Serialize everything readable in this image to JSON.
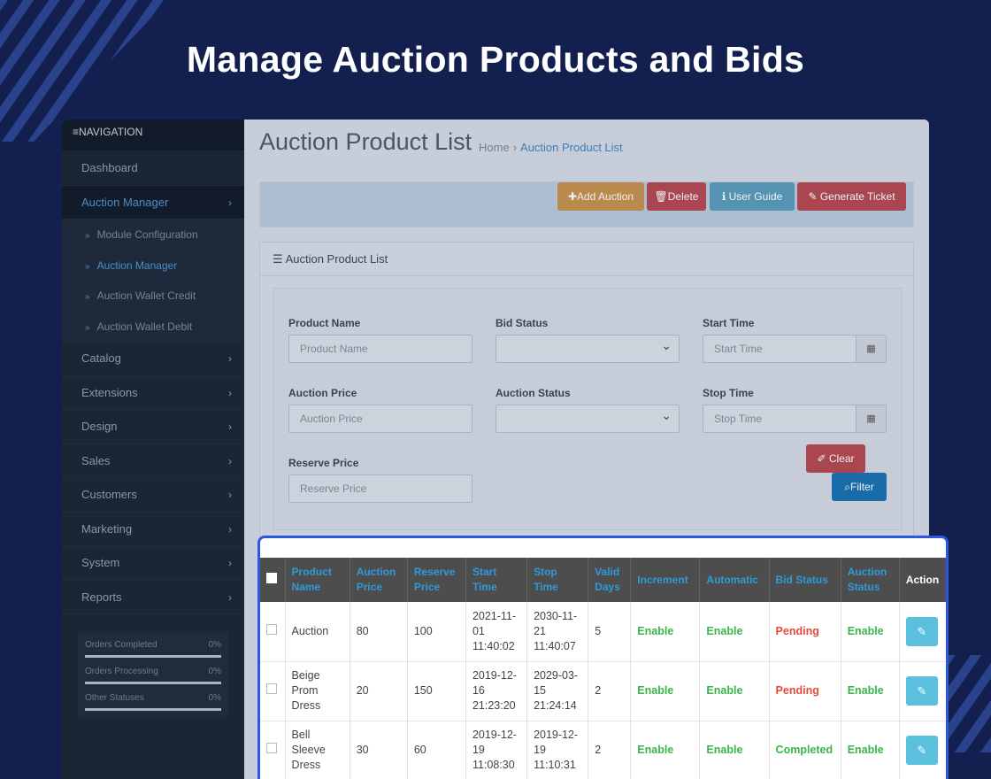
{
  "hero": {
    "title": "Manage Auction Products and Bids"
  },
  "sidebar": {
    "header": "NAVIGATION",
    "items": [
      {
        "label": "Dashboard"
      },
      {
        "label": "Auction Manager",
        "active": true
      },
      {
        "label": "Catalog"
      },
      {
        "label": "Extensions"
      },
      {
        "label": "Design"
      },
      {
        "label": "Sales"
      },
      {
        "label": "Customers"
      },
      {
        "label": "Marketing"
      },
      {
        "label": "System"
      },
      {
        "label": "Reports"
      }
    ],
    "sub_items": [
      {
        "label": "Module Configuration"
      },
      {
        "label": "Auction Manager",
        "active": true
      },
      {
        "label": "Auction Wallet Credit"
      },
      {
        "label": "Auction Wallet Debit"
      }
    ],
    "stats": [
      {
        "label": "Orders Completed",
        "value": "0%"
      },
      {
        "label": "Orders Processing",
        "value": "0%"
      },
      {
        "label": "Other Statuses",
        "value": "0%"
      }
    ]
  },
  "page": {
    "title": "Auction Product List",
    "breadcrumb": {
      "home": "Home",
      "sep": "›",
      "current": "Auction Product List"
    }
  },
  "toolbar": {
    "add": "Add Auction",
    "delete": "Delete",
    "guide": "User Guide",
    "ticket": "Generate Ticket"
  },
  "panel": {
    "title": "Auction Product List",
    "filters": {
      "product_name": {
        "label": "Product Name",
        "placeholder": "Product Name"
      },
      "bid_status": {
        "label": "Bid Status",
        "value": ""
      },
      "start_time": {
        "label": "Start Time",
        "placeholder": "Start Time"
      },
      "auction_price": {
        "label": "Auction Price",
        "placeholder": "Auction Price"
      },
      "auction_status": {
        "label": "Auction Status",
        "value": ""
      },
      "stop_time": {
        "label": "Stop Time",
        "placeholder": "Stop Time"
      },
      "reserve_price": {
        "label": "Reserve Price",
        "placeholder": "Reserve Price"
      }
    },
    "clear": "Clear",
    "filter": "Filter"
  },
  "table": {
    "columns": [
      "Product Name",
      "Auction Price",
      "Reserve Price",
      "Start Time",
      "Stop Time",
      "Valid Days",
      "Increment",
      "Automatic",
      "Bid Status",
      "Auction Status",
      "Action"
    ],
    "rows": [
      {
        "name": "Auction",
        "auction_price": "80",
        "reserve_price": "100",
        "start": "2021-11-01 11:40:02",
        "stop": "2030-11-21 11:40:07",
        "days": "5",
        "increment": "Enable",
        "automatic": "Enable",
        "bid_status": "Pending",
        "auction_status": "Enable"
      },
      {
        "name": "Beige Prom Dress",
        "auction_price": "20",
        "reserve_price": "150",
        "start": "2019-12-16 21:23:20",
        "stop": "2029-03-15 21:24:14",
        "days": "2",
        "increment": "Enable",
        "automatic": "Enable",
        "bid_status": "Pending",
        "auction_status": "Enable"
      },
      {
        "name": "Bell Sleeve Dress",
        "auction_price": "30",
        "reserve_price": "60",
        "start": "2019-12-19 11:08:30",
        "stop": "2019-12-19 11:10:31",
        "days": "2",
        "increment": "Enable",
        "automatic": "Enable",
        "bid_status": "Completed",
        "auction_status": "Enable"
      }
    ]
  },
  "colors": {
    "background": "#13204f",
    "accent": "#2f56e0",
    "enable": "#39b54a",
    "pending": "#e04b3b"
  }
}
